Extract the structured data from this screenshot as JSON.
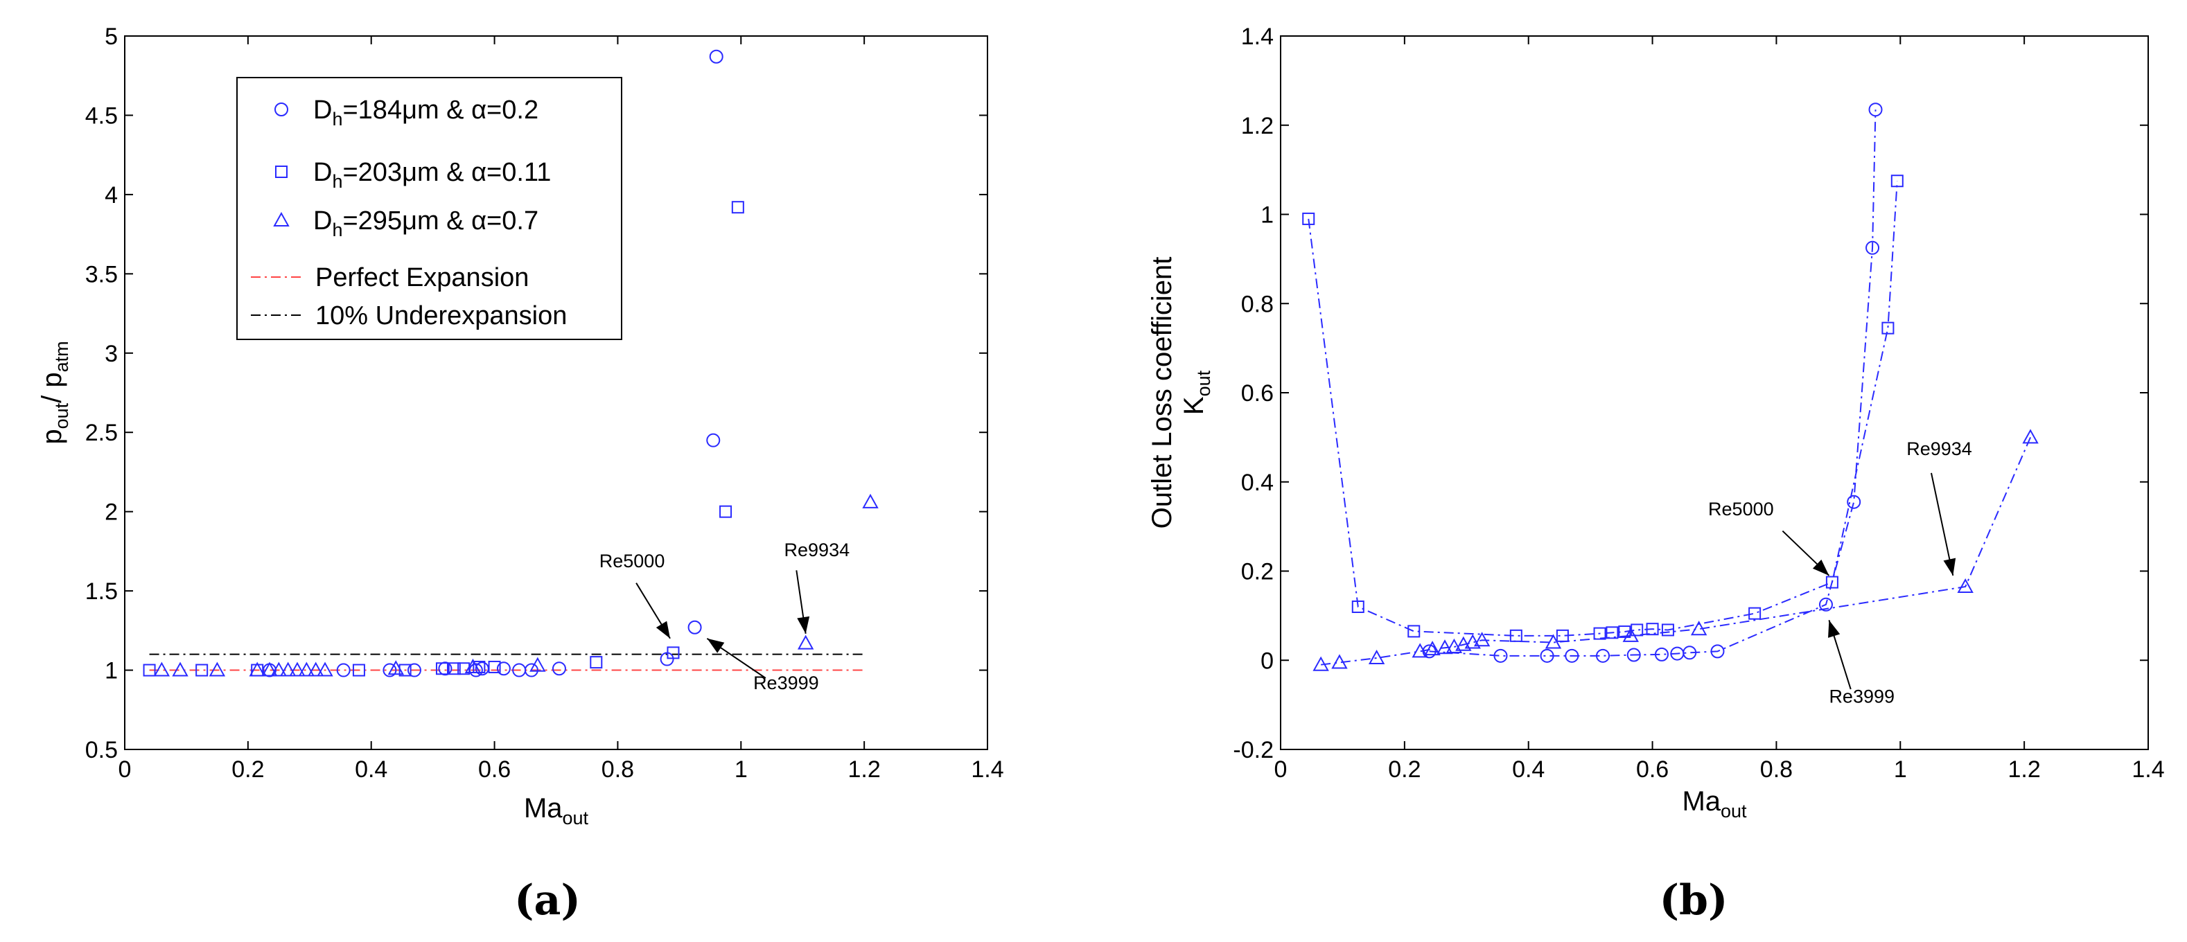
{
  "chart_data": [
    {
      "type": "scatter",
      "panel_label": "(a)",
      "xlabel": {
        "main": "Ma",
        "sub": "out"
      },
      "ylabel": {
        "main1": "p",
        "sub1": "out",
        "mid": "/ p",
        "sub2": "atm"
      },
      "xlim": [
        0,
        1.4
      ],
      "ylim": [
        0.5,
        5
      ],
      "xticks": [
        "0",
        "0.2",
        "0.4",
        "0.6",
        "0.8",
        "1",
        "1.2",
        "1.4"
      ],
      "yticks": [
        "0.5",
        "1",
        "1.5",
        "2",
        "2.5",
        "3",
        "3.5",
        "4",
        "4.5",
        "5"
      ],
      "grid": false,
      "legend_position": "upper-left",
      "legend": [
        {
          "pre": "D",
          "sub": "h",
          "post": "=184μm & α=0.2",
          "marker": "circle"
        },
        {
          "pre": "D",
          "sub": "h",
          "post": "=203μm & α=0.11",
          "marker": "square"
        },
        {
          "pre": "D",
          "sub": "h",
          "post": "=295μm & α=0.7",
          "marker": "triangle"
        },
        {
          "pre": "Perfect Expansion",
          "sub": "",
          "post": "",
          "marker": "dashdot-red"
        },
        {
          "pre": "10% Underexpansion",
          "sub": "",
          "post": "",
          "marker": "dashdot-black"
        }
      ],
      "series": [
        {
          "marker": "circle",
          "x": [
            0.235,
            0.355,
            0.43,
            0.47,
            0.52,
            0.57,
            0.58,
            0.615,
            0.64,
            0.66,
            0.705,
            0.88,
            0.925,
            0.955,
            0.96
          ],
          "y": [
            1.0,
            1.0,
            1.0,
            1.0,
            1.01,
            1.0,
            1.01,
            1.01,
            1.0,
            1.0,
            1.01,
            1.07,
            1.27,
            2.45,
            4.87
          ]
        },
        {
          "marker": "square",
          "x": [
            0.04,
            0.125,
            0.215,
            0.38,
            0.455,
            0.515,
            0.535,
            0.55,
            0.575,
            0.6,
            0.765,
            0.89,
            0.975,
            0.995
          ],
          "y": [
            1.0,
            1.0,
            1.0,
            1.0,
            1.0,
            1.01,
            1.01,
            1.01,
            1.02,
            1.02,
            1.05,
            1.11,
            2.0,
            3.92
          ]
        },
        {
          "marker": "triangle",
          "x": [
            0.06,
            0.09,
            0.15,
            0.215,
            0.235,
            0.25,
            0.265,
            0.28,
            0.295,
            0.31,
            0.325,
            0.44,
            0.565,
            0.67,
            1.105,
            1.21
          ],
          "y": [
            1.0,
            1.0,
            1.0,
            1.0,
            1.0,
            1.0,
            1.0,
            1.0,
            1.0,
            1.0,
            1.0,
            1.01,
            1.02,
            1.03,
            1.17,
            2.06
          ]
        }
      ],
      "reference_lines": [
        {
          "name": "Perfect Expansion",
          "y": 1.0,
          "x": [
            0.04,
            1.2
          ],
          "color": "#ff4444"
        },
        {
          "name": "10% Underexpansion",
          "y": 1.1,
          "x": [
            0.04,
            1.2
          ],
          "color": "#000000"
        }
      ],
      "annotations": [
        {
          "text": "Re5000",
          "text_x": 0.77,
          "text_y": 1.65,
          "arrow_from": [
            0.83,
            1.55
          ],
          "arrow_to": [
            0.885,
            1.2
          ]
        },
        {
          "text": "Re3999",
          "text_x": 1.02,
          "text_y": 0.88,
          "arrow_from": [
            1.04,
            0.95
          ],
          "arrow_to": [
            0.945,
            1.2
          ]
        },
        {
          "text": "Re9934",
          "text_x": 1.07,
          "text_y": 1.72,
          "arrow_from": [
            1.09,
            1.63
          ],
          "arrow_to": [
            1.105,
            1.23
          ]
        }
      ]
    },
    {
      "type": "line",
      "panel_label": "(b)",
      "xlabel": {
        "main": "Ma",
        "sub": "out"
      },
      "ylabel": {
        "line1": "Outlet Loss coefficient",
        "main": "K",
        "sub": "out"
      },
      "xlim": [
        0,
        1.4
      ],
      "ylim": [
        -0.2,
        1.4
      ],
      "xticks": [
        "0",
        "0.2",
        "0.4",
        "0.6",
        "0.8",
        "1",
        "1.2",
        "1.4"
      ],
      "yticks": [
        "-0.2",
        "0",
        "0.2",
        "0.4",
        "0.6",
        "0.8",
        "1",
        "1.2",
        "1.4"
      ],
      "grid": false,
      "series": [
        {
          "marker": "circle",
          "line_style": "dashdot",
          "color": "#2a2aff",
          "x": [
            0.24,
            0.355,
            0.43,
            0.47,
            0.52,
            0.57,
            0.615,
            0.64,
            0.66,
            0.705,
            0.88,
            0.925,
            0.955,
            0.96
          ],
          "y": [
            0.02,
            0.01,
            0.01,
            0.01,
            0.01,
            0.012,
            0.013,
            0.015,
            0.017,
            0.02,
            0.125,
            0.355,
            0.925,
            1.235
          ]
        },
        {
          "marker": "square",
          "line_style": "dashdot",
          "color": "#2a2aff",
          "x": [
            0.045,
            0.125,
            0.215,
            0.38,
            0.455,
            0.515,
            0.535,
            0.555,
            0.575,
            0.6,
            0.625,
            0.765,
            0.89,
            0.98,
            0.995
          ],
          "y": [
            0.99,
            0.12,
            0.065,
            0.055,
            0.055,
            0.06,
            0.062,
            0.064,
            0.068,
            0.07,
            0.068,
            0.105,
            0.175,
            0.745,
            1.075
          ]
        },
        {
          "marker": "triangle",
          "line_style": "dashdot",
          "color": "#2a2aff",
          "x": [
            0.065,
            0.095,
            0.155,
            0.225,
            0.245,
            0.265,
            0.28,
            0.295,
            0.31,
            0.325,
            0.44,
            0.565,
            0.675,
            1.105,
            1.21
          ],
          "y": [
            -0.01,
            -0.005,
            0.005,
            0.02,
            0.025,
            0.028,
            0.03,
            0.035,
            0.04,
            0.045,
            0.04,
            0.055,
            0.07,
            0.165,
            0.5
          ]
        }
      ],
      "annotations": [
        {
          "text": "Re5000",
          "text_x": 0.69,
          "text_y": 0.325,
          "arrow_from": [
            0.81,
            0.29
          ],
          "arrow_to": [
            0.885,
            0.19
          ]
        },
        {
          "text": "Re3999",
          "text_x": 0.885,
          "text_y": -0.095,
          "arrow_from": [
            0.92,
            -0.065
          ],
          "arrow_to": [
            0.885,
            0.09
          ]
        },
        {
          "text": "Re9934",
          "text_x": 1.01,
          "text_y": 0.46,
          "arrow_from": [
            1.05,
            0.42
          ],
          "arrow_to": [
            1.085,
            0.19
          ]
        }
      ]
    }
  ],
  "colors": {
    "marker": "#2a2aff",
    "perfect_expansion": "#ff4444",
    "underexpansion": "#000000"
  }
}
